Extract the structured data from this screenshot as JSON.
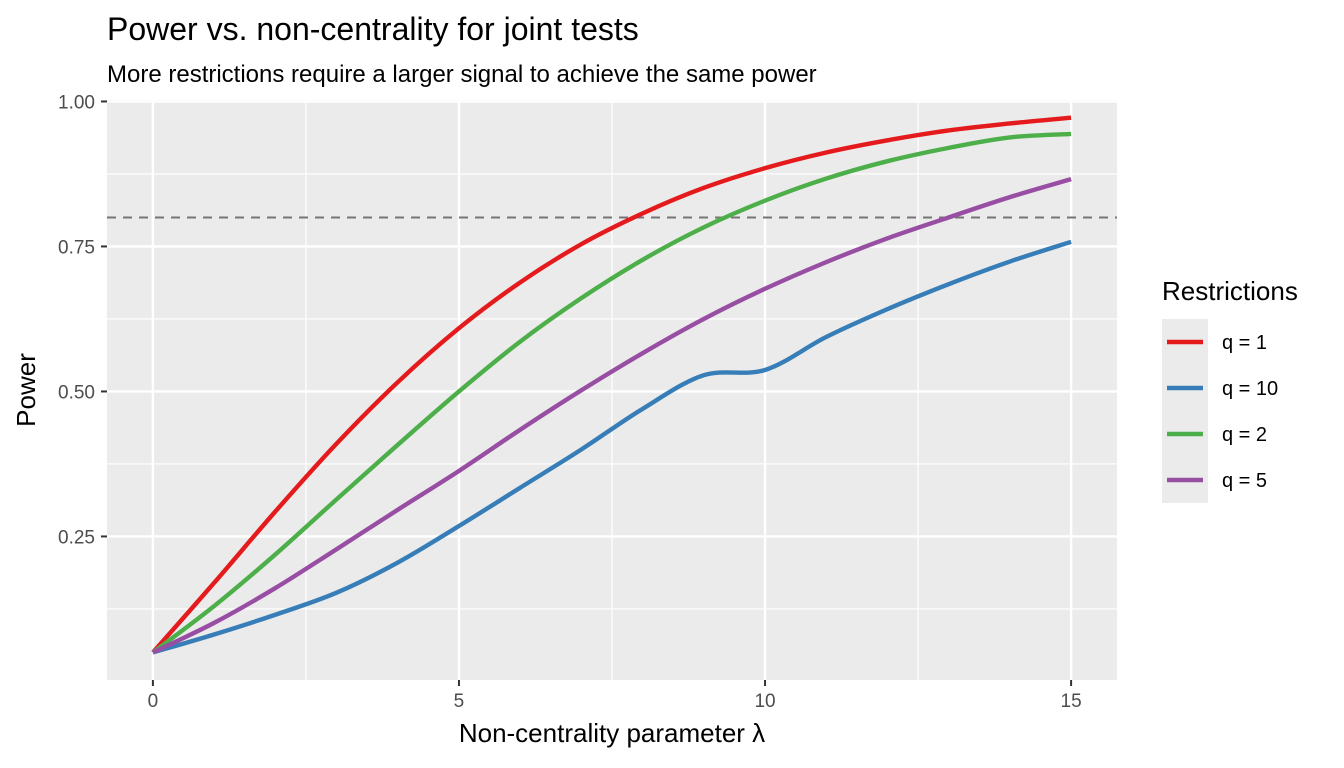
{
  "chart_data": {
    "type": "line",
    "title": "Power vs. non-centrality for joint tests",
    "subtitle": "More restrictions require a larger signal to achieve the same power",
    "xlabel": "Non-centrality parameter λ",
    "ylabel": "Power",
    "xlim": [
      -0.75,
      15.75
    ],
    "ylim": [
      0.0025,
      1.0025
    ],
    "x_ticks": [
      0,
      5,
      10,
      15
    ],
    "x_tick_labels": [
      "0",
      "5",
      "10",
      "15"
    ],
    "y_ticks": [
      0.25,
      0.5,
      0.75,
      1.0
    ],
    "y_tick_labels": [
      "0.25",
      "0.50",
      "0.75",
      "1.00"
    ],
    "grid": true,
    "reference_line": {
      "y": 0.8,
      "style": "dashed",
      "color": "#757575"
    },
    "legend": {
      "title": "Restrictions",
      "position": "right"
    },
    "series": [
      {
        "name": "q = 1",
        "color": "#E41A1C",
        "x": [
          0,
          1,
          2,
          3,
          4,
          5,
          6,
          7,
          8,
          9,
          10,
          11,
          12,
          13,
          14,
          15
        ],
        "values": [
          0.05,
          0.17,
          0.293,
          0.41,
          0.516,
          0.609,
          0.688,
          0.754,
          0.807,
          0.851,
          0.885,
          0.912,
          0.933,
          0.95,
          0.962,
          0.972
        ]
      },
      {
        "name": "q = 10",
        "color": "#377EB8",
        "x": [
          0,
          1,
          2,
          3,
          4,
          5,
          6,
          7,
          8,
          9,
          10,
          11,
          12,
          13,
          14,
          15
        ],
        "values": [
          0.05,
          0.081,
          0.115,
          0.153,
          0.205,
          0.268,
          0.334,
          0.4,
          0.47,
          0.528,
          0.537,
          0.594,
          0.642,
          0.685,
          0.724,
          0.758
        ]
      },
      {
        "name": "q = 2",
        "color": "#4DAF4A",
        "x": [
          0,
          1,
          2,
          3,
          4,
          5,
          6,
          7,
          8,
          9,
          10,
          11,
          12,
          13,
          14,
          15
        ],
        "values": [
          0.05,
          0.13,
          0.219,
          0.314,
          0.408,
          0.5,
          0.586,
          0.661,
          0.727,
          0.783,
          0.829,
          0.867,
          0.897,
          0.92,
          0.938,
          0.944
        ]
      },
      {
        "name": "q = 5",
        "color": "#984EA3",
        "x": [
          0,
          1,
          2,
          3,
          4,
          5,
          6,
          7,
          8,
          9,
          10,
          11,
          12,
          13,
          14,
          15
        ],
        "values": [
          0.05,
          0.101,
          0.161,
          0.228,
          0.296,
          0.363,
          0.434,
          0.502,
          0.566,
          0.625,
          0.677,
          0.723,
          0.764,
          0.8,
          0.835,
          0.866
        ]
      }
    ]
  }
}
